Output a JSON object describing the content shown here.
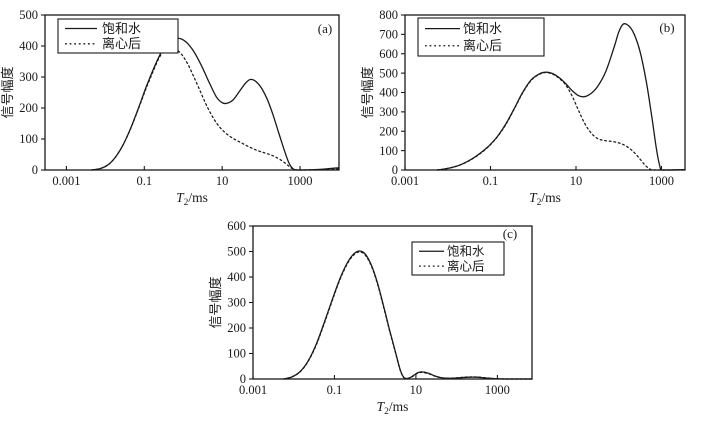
{
  "background": "#ffffff",
  "line_color": "#1a1a1a",
  "axes_shared": {
    "x_title": {
      "main": "T",
      "sub": "2",
      "rest": "/ms"
    },
    "y_title": "信号幅度",
    "x_scale": "log",
    "x_ticks": [
      {
        "exp": -3,
        "label": "0.001"
      },
      {
        "exp": -1,
        "label": "0.1"
      },
      {
        "exp": 1,
        "label": "10"
      },
      {
        "exp": 3,
        "label": "1000"
      }
    ]
  },
  "legend_entries": [
    {
      "name": "饱和水",
      "style": "solid"
    },
    {
      "name": "离心后",
      "style": "dotted"
    }
  ],
  "chart_data": [
    {
      "type": "line",
      "panel_label": "(a)",
      "x_axis": {
        "scale": "log",
        "min_exp": -3.55,
        "max_exp": 4.0,
        "unit": "ms"
      },
      "y_axis": {
        "min": 0,
        "max": 500,
        "tick_step": 100,
        "ticks": [
          0,
          100,
          200,
          300,
          400,
          500
        ]
      },
      "legend_position": "top-left",
      "grid": false,
      "series": [
        {
          "name": "饱和水",
          "style": "solid",
          "points": [
            [
              -2.35,
              0
            ],
            [
              -2.15,
              4
            ],
            [
              -1.95,
              15
            ],
            [
              -1.75,
              40
            ],
            [
              -1.55,
              80
            ],
            [
              -1.35,
              135
            ],
            [
              -1.15,
              200
            ],
            [
              -0.95,
              268
            ],
            [
              -0.75,
              330
            ],
            [
              -0.55,
              383
            ],
            [
              -0.35,
              413
            ],
            [
              -0.15,
              425
            ],
            [
              0.05,
              415
            ],
            [
              0.25,
              386
            ],
            [
              0.45,
              341
            ],
            [
              0.65,
              287
            ],
            [
              0.85,
              236
            ],
            [
              1.0,
              217
            ],
            [
              1.12,
              215
            ],
            [
              1.28,
              226
            ],
            [
              1.45,
              255
            ],
            [
              1.6,
              280
            ],
            [
              1.72,
              292
            ],
            [
              1.85,
              287
            ],
            [
              2.0,
              266
            ],
            [
              2.15,
              230
            ],
            [
              2.3,
              180
            ],
            [
              2.45,
              121
            ],
            [
              2.6,
              62
            ],
            [
              2.72,
              21
            ],
            [
              2.82,
              4
            ],
            [
              2.9,
              0
            ],
            [
              3.1,
              0
            ],
            [
              3.35,
              1
            ],
            [
              3.6,
              3
            ],
            [
              3.8,
              5
            ],
            [
              4.0,
              7
            ]
          ]
        },
        {
          "name": "离心后",
          "style": "dotted",
          "points": [
            [
              -2.35,
              0
            ],
            [
              -2.15,
              4
            ],
            [
              -1.95,
              15
            ],
            [
              -1.75,
              40
            ],
            [
              -1.55,
              80
            ],
            [
              -1.35,
              134
            ],
            [
              -1.15,
              198
            ],
            [
              -0.95,
              264
            ],
            [
              -0.75,
              325
            ],
            [
              -0.6,
              366
            ],
            [
              -0.45,
              388
            ],
            [
              -0.33,
              394
            ],
            [
              -0.18,
              389
            ],
            [
              -0.03,
              371
            ],
            [
              0.12,
              341
            ],
            [
              0.27,
              301
            ],
            [
              0.42,
              259
            ],
            [
              0.57,
              216
            ],
            [
              0.72,
              179
            ],
            [
              0.87,
              149
            ],
            [
              1.02,
              127
            ],
            [
              1.17,
              111
            ],
            [
              1.32,
              99
            ],
            [
              1.47,
              89
            ],
            [
              1.62,
              79
            ],
            [
              1.77,
              70
            ],
            [
              1.92,
              62
            ],
            [
              2.07,
              56
            ],
            [
              2.22,
              50
            ],
            [
              2.37,
              42
            ],
            [
              2.52,
              31
            ],
            [
              2.65,
              19
            ],
            [
              2.77,
              7
            ],
            [
              2.88,
              1
            ],
            [
              3.0,
              0
            ],
            [
              3.3,
              0
            ],
            [
              3.6,
              1
            ],
            [
              3.8,
              2
            ],
            [
              4.0,
              3
            ]
          ]
        }
      ]
    },
    {
      "type": "line",
      "panel_label": "(b)",
      "x_axis": {
        "scale": "log",
        "min_exp": -3.0,
        "max_exp": 3.55,
        "unit": "ms"
      },
      "y_axis": {
        "min": 0,
        "max": 800,
        "tick_step": 100,
        "ticks": [
          0,
          100,
          200,
          300,
          400,
          500,
          600,
          700,
          800
        ]
      },
      "legend_position": "top-left",
      "grid": false,
      "series": [
        {
          "name": "饱和水",
          "style": "solid",
          "points": [
            [
              -2.25,
              0
            ],
            [
              -2.05,
              6
            ],
            [
              -1.85,
              16
            ],
            [
              -1.65,
              32
            ],
            [
              -1.45,
              55
            ],
            [
              -1.25,
              85
            ],
            [
              -1.05,
              122
            ],
            [
              -0.85,
              170
            ],
            [
              -0.65,
              235
            ],
            [
              -0.45,
              315
            ],
            [
              -0.25,
              400
            ],
            [
              -0.05,
              465
            ],
            [
              0.15,
              497
            ],
            [
              0.3,
              505
            ],
            [
              0.45,
              498
            ],
            [
              0.6,
              478
            ],
            [
              0.75,
              448
            ],
            [
              0.9,
              412
            ],
            [
              1.05,
              385
            ],
            [
              1.18,
              378
            ],
            [
              1.32,
              390
            ],
            [
              1.5,
              430
            ],
            [
              1.7,
              510
            ],
            [
              1.9,
              640
            ],
            [
              2.0,
              712
            ],
            [
              2.1,
              752
            ],
            [
              2.22,
              747
            ],
            [
              2.35,
              706
            ],
            [
              2.5,
              610
            ],
            [
              2.65,
              450
            ],
            [
              2.78,
              265
            ],
            [
              2.88,
              110
            ],
            [
              2.96,
              20
            ],
            [
              3.01,
              0
            ],
            [
              3.2,
              0
            ],
            [
              3.4,
              1
            ],
            [
              3.55,
              2
            ]
          ]
        },
        {
          "name": "离心后",
          "style": "dotted",
          "points": [
            [
              -2.25,
              0
            ],
            [
              -2.05,
              6
            ],
            [
              -1.85,
              16
            ],
            [
              -1.65,
              31
            ],
            [
              -1.45,
              54
            ],
            [
              -1.25,
              83
            ],
            [
              -1.05,
              120
            ],
            [
              -0.85,
              168
            ],
            [
              -0.65,
              232
            ],
            [
              -0.45,
              312
            ],
            [
              -0.25,
              397
            ],
            [
              -0.05,
              462
            ],
            [
              0.15,
              495
            ],
            [
              0.3,
              503
            ],
            [
              0.45,
              495
            ],
            [
              0.6,
              474
            ],
            [
              0.75,
              442
            ],
            [
              0.9,
              386
            ],
            [
              1.05,
              312
            ],
            [
              1.2,
              242
            ],
            [
              1.35,
              192
            ],
            [
              1.5,
              163
            ],
            [
              1.65,
              153
            ],
            [
              1.8,
              148
            ],
            [
              1.95,
              143
            ],
            [
              2.1,
              132
            ],
            [
              2.25,
              112
            ],
            [
              2.38,
              86
            ],
            [
              2.5,
              56
            ],
            [
              2.6,
              29
            ],
            [
              2.7,
              9
            ],
            [
              2.78,
              1
            ],
            [
              2.85,
              0
            ],
            [
              3.1,
              0
            ],
            [
              3.35,
              1
            ],
            [
              3.55,
              2
            ]
          ]
        }
      ]
    },
    {
      "type": "line",
      "panel_label": "(c)",
      "x_axis": {
        "scale": "log",
        "min_exp": -3.0,
        "max_exp": 3.85,
        "unit": "ms"
      },
      "y_axis": {
        "min": 0,
        "max": 600,
        "tick_step": 100,
        "ticks": [
          0,
          100,
          200,
          300,
          400,
          500,
          600
        ]
      },
      "legend_position": "top-right",
      "grid": false,
      "series": [
        {
          "name": "饱和水",
          "style": "solid",
          "points": [
            [
              -2.25,
              0
            ],
            [
              -2.05,
              8
            ],
            [
              -1.85,
              28
            ],
            [
              -1.65,
              70
            ],
            [
              -1.45,
              135
            ],
            [
              -1.25,
              222
            ],
            [
              -1.05,
              313
            ],
            [
              -0.85,
              400
            ],
            [
              -0.65,
              465
            ],
            [
              -0.5,
              494
            ],
            [
              -0.38,
              502
            ],
            [
              -0.25,
              491
            ],
            [
              -0.1,
              449
            ],
            [
              0.05,
              380
            ],
            [
              0.2,
              290
            ],
            [
              0.35,
              195
            ],
            [
              0.5,
              104
            ],
            [
              0.6,
              44
            ],
            [
              0.68,
              11
            ],
            [
              0.75,
              2
            ],
            [
              0.85,
              5
            ],
            [
              0.95,
              15
            ],
            [
              1.05,
              25
            ],
            [
              1.15,
              28
            ],
            [
              1.3,
              23
            ],
            [
              1.45,
              13
            ],
            [
              1.6,
              6
            ],
            [
              1.75,
              3
            ],
            [
              1.92,
              3
            ],
            [
              2.1,
              5
            ],
            [
              2.3,
              7
            ],
            [
              2.5,
              7
            ],
            [
              2.7,
              4
            ],
            [
              2.9,
              2
            ],
            [
              3.2,
              0
            ],
            [
              3.85,
              0
            ]
          ]
        },
        {
          "name": "离心后",
          "style": "dotted",
          "points": [
            [
              -2.25,
              0
            ],
            [
              -2.05,
              8
            ],
            [
              -1.85,
              27
            ],
            [
              -1.65,
              68
            ],
            [
              -1.45,
              132
            ],
            [
              -1.25,
              218
            ],
            [
              -1.05,
              309
            ],
            [
              -0.85,
              396
            ],
            [
              -0.65,
              461
            ],
            [
              -0.5,
              490
            ],
            [
              -0.38,
              498
            ],
            [
              -0.25,
              487
            ],
            [
              -0.1,
              445
            ],
            [
              0.05,
              376
            ],
            [
              0.2,
              286
            ],
            [
              0.35,
              191
            ],
            [
              0.5,
              101
            ],
            [
              0.6,
              42
            ],
            [
              0.68,
              10
            ],
            [
              0.75,
              2
            ],
            [
              0.85,
              4
            ],
            [
              0.95,
              13
            ],
            [
              1.05,
              23
            ],
            [
              1.15,
              26
            ],
            [
              1.3,
              21
            ],
            [
              1.45,
              12
            ],
            [
              1.6,
              5
            ],
            [
              1.75,
              3
            ],
            [
              1.92,
              4
            ],
            [
              2.1,
              6
            ],
            [
              2.3,
              8
            ],
            [
              2.5,
              8
            ],
            [
              2.7,
              5
            ],
            [
              2.9,
              2
            ],
            [
              3.2,
              0
            ],
            [
              3.85,
              0
            ]
          ]
        }
      ]
    }
  ]
}
